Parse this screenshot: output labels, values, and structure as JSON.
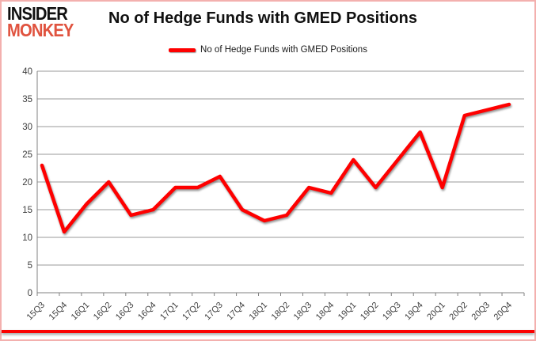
{
  "logo": {
    "line1": "INSIDER",
    "line2": "MONKEY"
  },
  "title": "No of Hedge Funds with GMED Positions",
  "legend": {
    "label": "No of Hedge Funds with GMED Positions",
    "swatch_color": "#fe0000"
  },
  "chart_data": {
    "type": "line",
    "title": "No of Hedge Funds with GMED Positions",
    "categories": [
      "15Q3",
      "15Q4",
      "16Q1",
      "16Q2",
      "16Q3",
      "16Q4",
      "17Q1",
      "17Q2",
      "17Q3",
      "17Q4",
      "18Q1",
      "18Q2",
      "18Q3",
      "18Q4",
      "19Q1",
      "19Q2",
      "19Q3",
      "19Q4",
      "20Q1",
      "20Q2",
      "20Q3",
      "20Q4"
    ],
    "series": [
      {
        "name": "No of Hedge Funds with GMED Positions",
        "color": "#fe0000",
        "values": [
          23,
          11,
          16,
          20,
          14,
          15,
          19,
          19,
          21,
          15,
          13,
          14,
          19,
          18,
          24,
          19,
          24,
          29,
          19,
          32,
          33,
          34
        ]
      }
    ],
    "xlabel": "",
    "ylabel": "",
    "ylim": [
      0,
      40
    ],
    "yticks": [
      0,
      5,
      10,
      15,
      20,
      25,
      30,
      35,
      40
    ],
    "grid": true,
    "legend_position": "top-center"
  },
  "colors": {
    "line": "#fe0000",
    "logo_red": "#e0533f",
    "frame_border": "#f3b0ae",
    "gridline": "#9a9a9a",
    "axis": "#808080",
    "tick_label": "#3f3f3f",
    "title_text": "#111111",
    "bottom_bar": "#fb0000"
  }
}
